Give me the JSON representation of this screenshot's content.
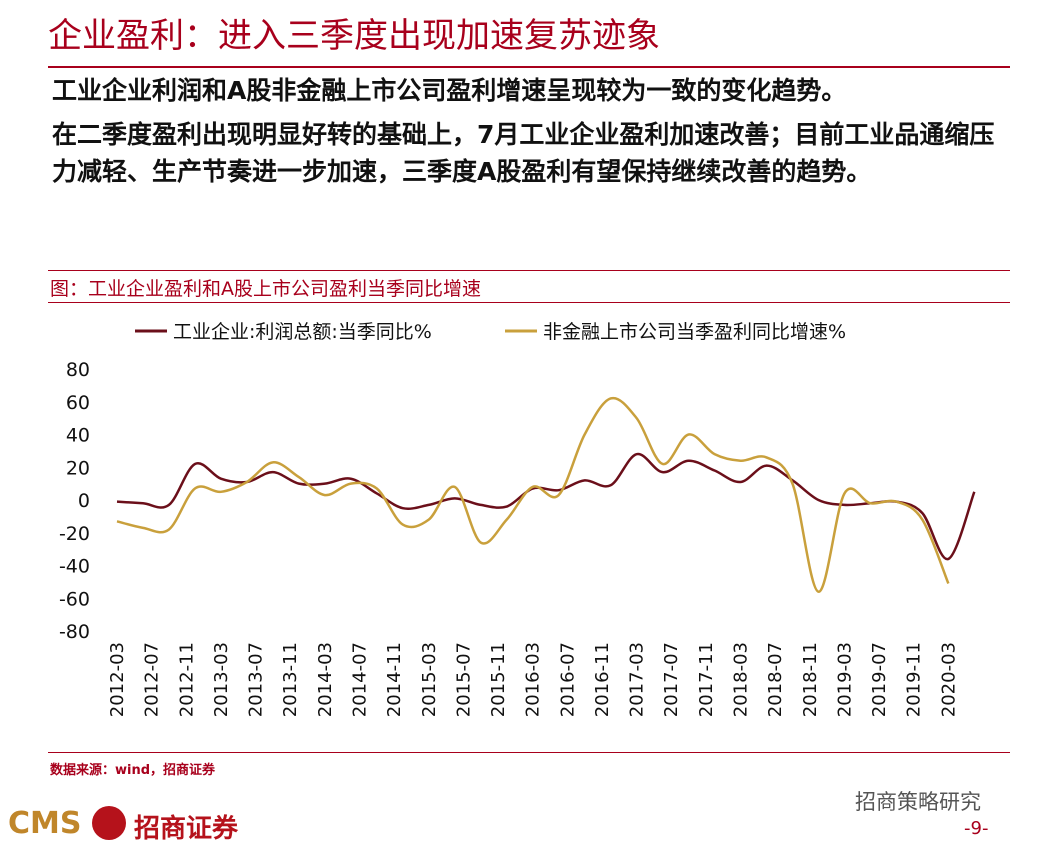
{
  "header": {
    "title": "企业盈利：进入三季度出现加速复苏迹象"
  },
  "paragraphs": [
    "工业企业利润和A股非金融上市公司盈利增速呈现较为一致的变化趋势。",
    "在二季度盈利出现明显好转的基础上，7月工业企业盈利加速改善；目前工业品通缩压力减轻、生产节奏进一步加速，三季度A股盈利有望保持继续改善的趋势。"
  ],
  "chart_data": {
    "type": "line",
    "title": "图：工业企业盈利和A股上市公司盈利当季同比增速",
    "x": [
      "2012-03",
      "2012-06",
      "2012-09",
      "2012-12",
      "2013-03",
      "2013-06",
      "2013-09",
      "2013-12",
      "2014-03",
      "2014-06",
      "2014-09",
      "2014-12",
      "2015-03",
      "2015-06",
      "2015-09",
      "2015-12",
      "2016-03",
      "2016-06",
      "2016-09",
      "2016-12",
      "2017-03",
      "2017-06",
      "2017-09",
      "2017-12",
      "2018-03",
      "2018-06",
      "2018-09",
      "2018-12",
      "2019-03",
      "2019-06",
      "2019-09",
      "2019-12",
      "2020-03",
      "2020-06"
    ],
    "xticks": [
      "2012-03",
      "2012-07",
      "2012-11",
      "2013-03",
      "2013-07",
      "2013-11",
      "2014-03",
      "2014-07",
      "2014-11",
      "2015-03",
      "2015-07",
      "2015-11",
      "2016-03",
      "2016-07",
      "2016-11",
      "2017-03",
      "2017-07",
      "2017-11",
      "2018-03",
      "2018-07",
      "2018-11",
      "2019-03",
      "2019-07",
      "2019-11",
      "2020-03"
    ],
    "series": [
      {
        "name": "工业企业:利润总额:当季同比%",
        "color": "#6b0f1a",
        "values": [
          -1,
          -2,
          -3,
          22,
          13,
          11,
          17,
          10,
          10,
          13,
          4,
          -5,
          -3,
          1,
          -3,
          -4,
          7,
          6,
          12,
          9,
          28,
          17,
          24,
          18,
          11,
          21,
          12,
          0,
          -3,
          -2,
          -1,
          -8,
          -36,
          5
        ]
      },
      {
        "name": "非金融上市公司当季盈利同比增速%",
        "color": "#c9a03c",
        "values": [
          -13,
          -17,
          -18,
          7,
          5,
          11,
          23,
          14,
          3,
          10,
          7,
          -15,
          -12,
          8,
          -26,
          -12,
          8,
          3,
          40,
          62,
          50,
          22,
          40,
          28,
          24,
          26,
          10,
          -56,
          4,
          -2,
          -1,
          -12,
          -51,
          null
        ]
      }
    ],
    "ylim": [
      -80,
      80
    ],
    "yticks": [
      -80,
      -60,
      -40,
      -20,
      0,
      20,
      40,
      60,
      80
    ],
    "source": "数据来源：wind，招商证券"
  },
  "footer": {
    "logo": "CMS",
    "brand": "招商证券",
    "watermark": "招商策略研究",
    "page": "-9-"
  }
}
